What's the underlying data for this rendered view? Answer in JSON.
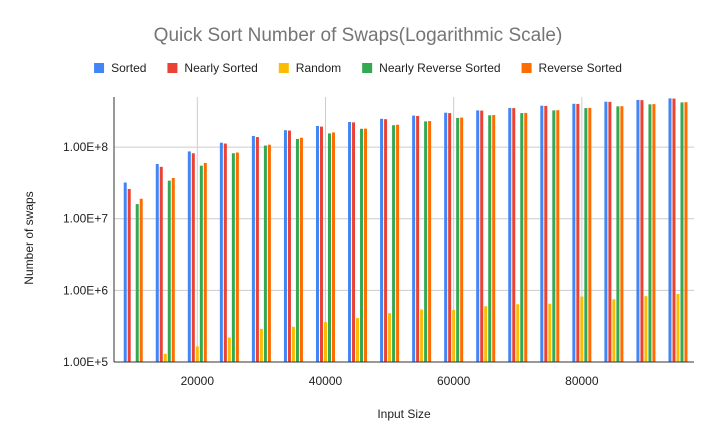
{
  "chart_data": {
    "type": "bar",
    "title": "Quick Sort Number of Swaps(Logarithmic Scale)",
    "xlabel": "Input Size",
    "ylabel": "Number of swaps",
    "y_scale": "log",
    "ylim": [
      100000,
      500000000
    ],
    "xlim": [
      7000,
      97500
    ],
    "x_ticks": [
      20000,
      40000,
      60000,
      80000
    ],
    "x_tick_labels": [
      "20000",
      "40000",
      "60000",
      "80000"
    ],
    "y_ticks": [
      100000,
      1000000,
      10000000,
      100000000
    ],
    "y_tick_labels": [
      "1.00E+5",
      "1.00E+6",
      "1.00E+7",
      "1.00E+8"
    ],
    "grid": true,
    "legend_position": "top",
    "x": [
      10000,
      15000,
      20000,
      25000,
      30000,
      35000,
      40000,
      45000,
      50000,
      55000,
      60000,
      65000,
      70000,
      75000,
      80000,
      85000,
      90000,
      95000
    ],
    "series": [
      {
        "name": "Sorted",
        "color": "#4285f4",
        "values": [
          32000000,
          58000000,
          87000000,
          115000000,
          143000000,
          172000000,
          197000000,
          224000000,
          248000000,
          275000000,
          302000000,
          325000000,
          352000000,
          378000000,
          402000000,
          430000000,
          455000000,
          478000000
        ]
      },
      {
        "name": "Nearly Sorted",
        "color": "#ea4335",
        "values": [
          26000000,
          53000000,
          82000000,
          112000000,
          138000000,
          170000000,
          193000000,
          221000000,
          245000000,
          272000000,
          298000000,
          323000000,
          350000000,
          375000000,
          400000000,
          428000000,
          452000000,
          475000000
        ]
      },
      {
        "name": "Random",
        "color": "#fbbc04",
        "values": [
          100000,
          130000,
          165000,
          220000,
          290000,
          310000,
          360000,
          410000,
          480000,
          540000,
          530000,
          600000,
          640000,
          650000,
          820000,
          750000,
          830000,
          890000
        ]
      },
      {
        "name": "Nearly Reverse Sorted",
        "color": "#34a853",
        "values": [
          16000000,
          34000000,
          55000000,
          82000000,
          105000000,
          130000000,
          155000000,
          180000000,
          202000000,
          228000000,
          255000000,
          278000000,
          298000000,
          325000000,
          350000000,
          370000000,
          395000000,
          420000000
        ]
      },
      {
        "name": "Reverse Sorted",
        "color": "#ff6d01",
        "values": [
          19000000,
          37000000,
          60000000,
          84000000,
          108000000,
          135000000,
          160000000,
          181000000,
          205000000,
          231000000,
          258000000,
          280000000,
          300000000,
          327000000,
          352000000,
          372000000,
          398000000,
          423000000
        ]
      }
    ]
  }
}
